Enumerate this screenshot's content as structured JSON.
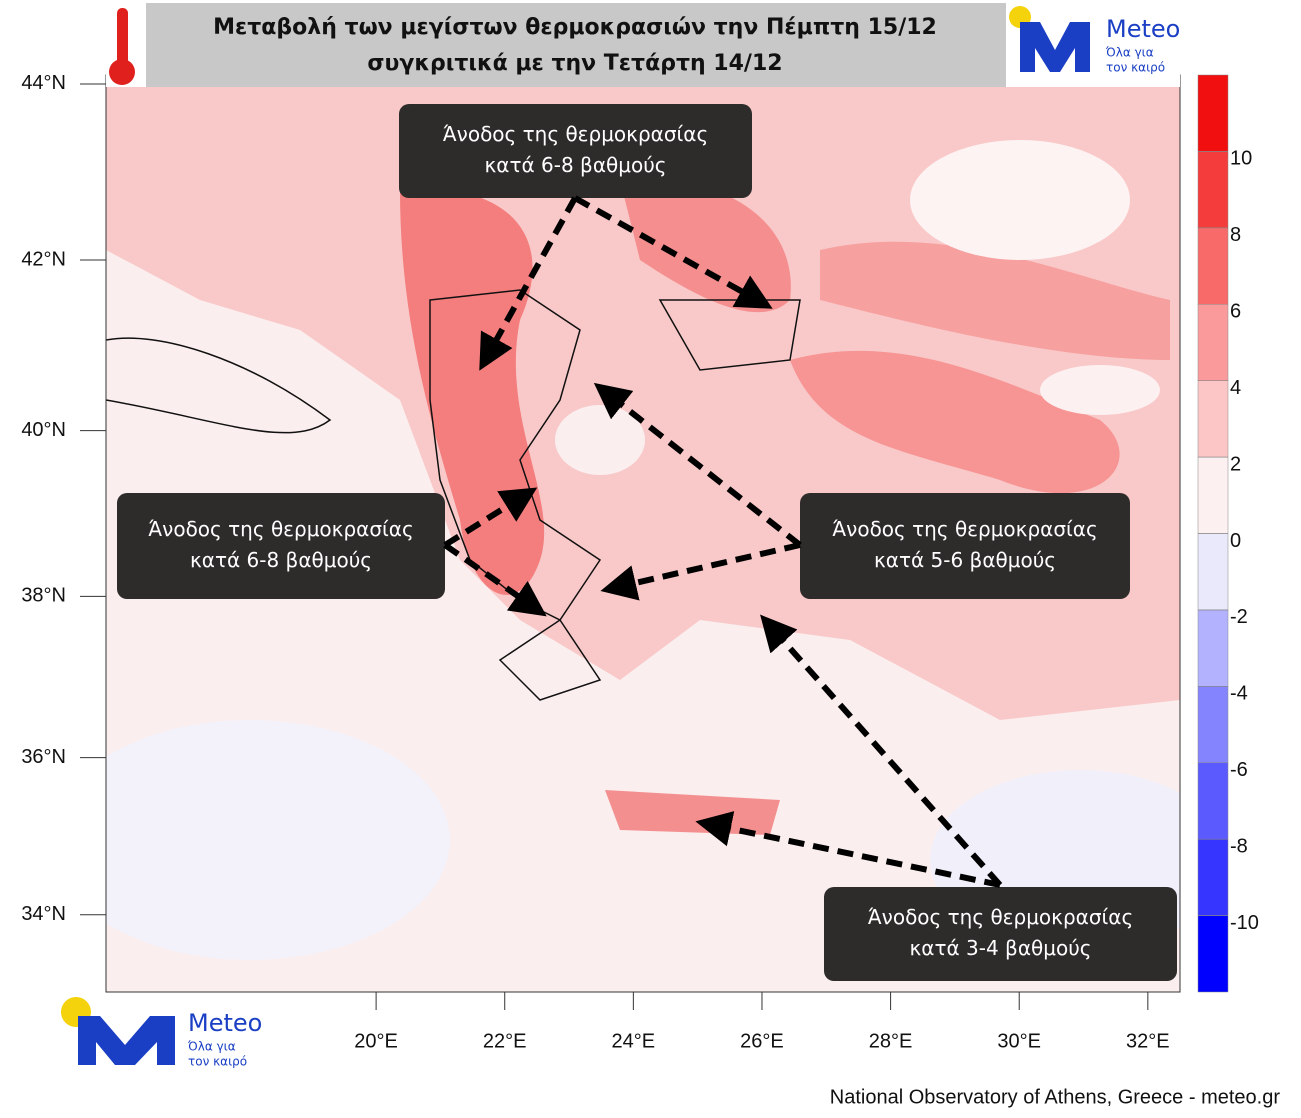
{
  "chart_data": {
    "type": "map",
    "title_lines": [
      "Μεταβολή των μεγίστων θερμοκρασιών την Πέμπτη 15/12",
      "συγκριτικά με την Τετάρτη 14/12"
    ],
    "xlim": [
      15.8,
      32.5
    ],
    "ylim": [
      33,
      44.1
    ],
    "xticks": [
      {
        "value": 20,
        "label": "20°E"
      },
      {
        "value": 22,
        "label": "22°E"
      },
      {
        "value": 24,
        "label": "24°E"
      },
      {
        "value": 26,
        "label": "26°E"
      },
      {
        "value": 28,
        "label": "28°E"
      },
      {
        "value": 30,
        "label": "30°E"
      },
      {
        "value": 32,
        "label": "32°E"
      }
    ],
    "yticks": [
      {
        "value": 34,
        "label": "34°N"
      },
      {
        "value": 36,
        "label": "36°N"
      },
      {
        "value": 38,
        "label": "38°N"
      },
      {
        "value": 40,
        "label": "40°N"
      },
      {
        "value": 42,
        "label": "42°N"
      },
      {
        "value": 44,
        "label": "44°N"
      }
    ],
    "colorbar": {
      "lim": [
        -12,
        12
      ],
      "ticks": [
        -10,
        -8,
        -6,
        -4,
        -2,
        0,
        2,
        4,
        6,
        8,
        10
      ],
      "colors": [
        "#0000ff",
        "#3535ff",
        "#5a5aff",
        "#8484ff",
        "#b2b2ff",
        "#e9e9fb",
        "#fdf0f0",
        "#fdc6c6",
        "#fb9a9a",
        "#f86a6a",
        "#f53c3c",
        "#f20f0f"
      ]
    },
    "annotations": [
      {
        "lines": [
          "Άνοδος της θερμοκρασίας",
          "κατά 6-8 βαθμούς"
        ]
      },
      {
        "lines": [
          "Άνοδος της θερμοκρασίας",
          "κατά 6-8 βαθμούς"
        ]
      },
      {
        "lines": [
          "Άνοδος της θερμοκρασίας",
          "κατά 5-6 βαθμούς"
        ]
      },
      {
        "lines": [
          "Άνοδος της θερμοκρασίας",
          "κατά 3-4 βαθμούς"
        ]
      }
    ]
  },
  "logo": {
    "brand": "Meteo",
    "tagline_lines": [
      "Όλα για",
      "τον καιρό"
    ]
  },
  "footer": {
    "credit": "National Observatory of Athens, Greece - meteo.gr"
  }
}
